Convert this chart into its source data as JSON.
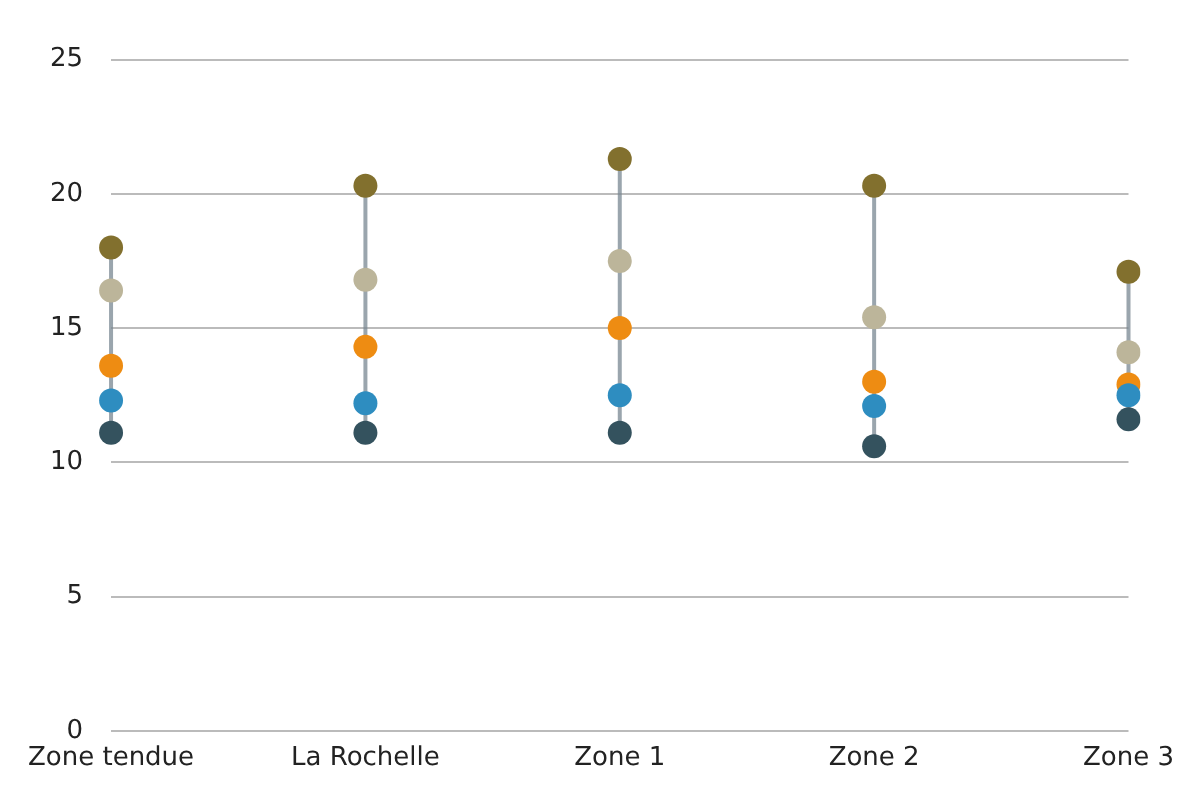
{
  "chart_data": {
    "type": "scatter",
    "categories": [
      "Zone tendue",
      "La Rochelle",
      "Zone 1",
      "Zone 2",
      "Zone 3"
    ],
    "series": [
      {
        "color": "#34525e",
        "values": [
          11.1,
          11.1,
          11.1,
          10.6,
          11.6
        ]
      },
      {
        "color": "#2e8dc0",
        "values": [
          12.3,
          12.2,
          12.5,
          12.1,
          12.5
        ]
      },
      {
        "color": "#ee8c12",
        "values": [
          13.6,
          14.3,
          15.0,
          13.0,
          12.9
        ]
      },
      {
        "color": "#bcb59a",
        "values": [
          16.4,
          16.8,
          17.5,
          15.4,
          14.1
        ]
      },
      {
        "color": "#82702e",
        "values": [
          18.0,
          20.3,
          21.3,
          20.3,
          17.1
        ]
      }
    ],
    "ylim": [
      0,
      25
    ],
    "yticks": [
      0,
      5,
      10,
      15,
      20,
      25
    ],
    "grid": "y",
    "legend": false,
    "marker": "circle"
  }
}
